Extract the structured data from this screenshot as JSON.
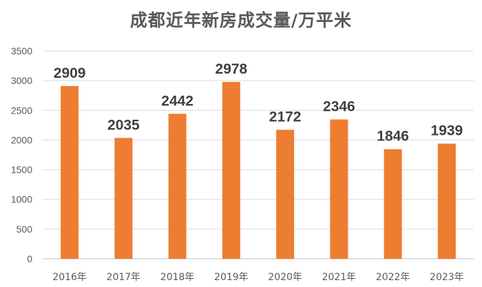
{
  "chart_data": {
    "type": "bar",
    "title": "成都近年新房成交量/万平米",
    "categories": [
      "2016年",
      "2017年",
      "2018年",
      "2019年",
      "2020年",
      "2021年",
      "2022年",
      "2023年"
    ],
    "values": [
      2909,
      2035,
      2442,
      2978,
      2172,
      2346,
      1846,
      1939
    ],
    "data_labels": [
      "2909",
      "2035",
      "2442",
      "2978",
      "2172",
      "2346",
      "1846",
      "1939"
    ],
    "ylim": [
      0,
      3500
    ],
    "yticks": [
      0,
      500,
      1000,
      1500,
      2000,
      2500,
      3000,
      3500
    ],
    "ytick_labels": [
      "0",
      "500",
      "1000",
      "1500",
      "2000",
      "2500",
      "3000",
      "3500"
    ],
    "grid": true,
    "legend": "none",
    "colors": {
      "bar": "#ED7D31",
      "grid": "#D9D9D9",
      "text": "#595959",
      "label": "#404040"
    }
  }
}
